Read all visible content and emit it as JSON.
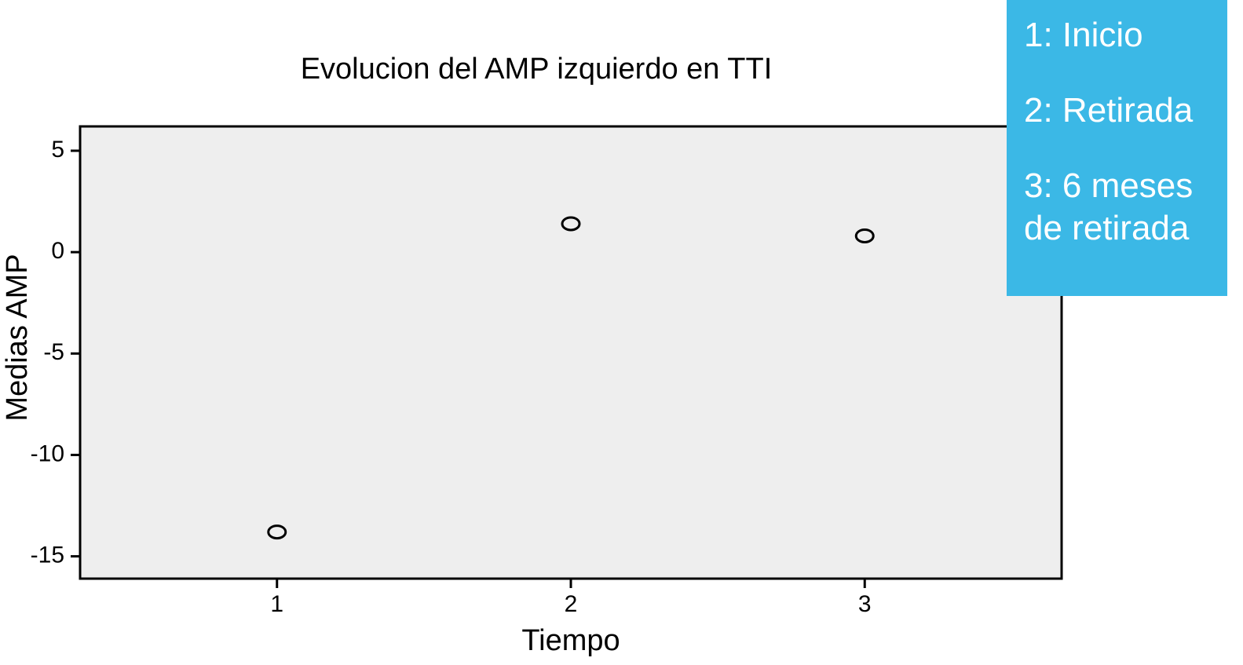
{
  "chart_data": {
    "type": "line",
    "title": "Evolucion del AMP izquierdo en TTI",
    "x_label": "Tiempo",
    "y_label": "Medias AMP",
    "x": [
      1,
      2,
      3
    ],
    "series": [
      {
        "name": "Medias AMP",
        "color": "#000000",
        "values": [
          -13.8,
          1.4,
          0.8
        ]
      }
    ],
    "xlim": [
      0.33,
      3.67
    ],
    "xticks": [
      1,
      2,
      3
    ],
    "ylim": [
      -16.1,
      6.2
    ],
    "yticks": [
      5,
      0,
      -5,
      -10,
      -15
    ],
    "annotations": [
      "1: Inicio",
      "2: Retirada",
      "3: 6 meses de retirada"
    ]
  }
}
